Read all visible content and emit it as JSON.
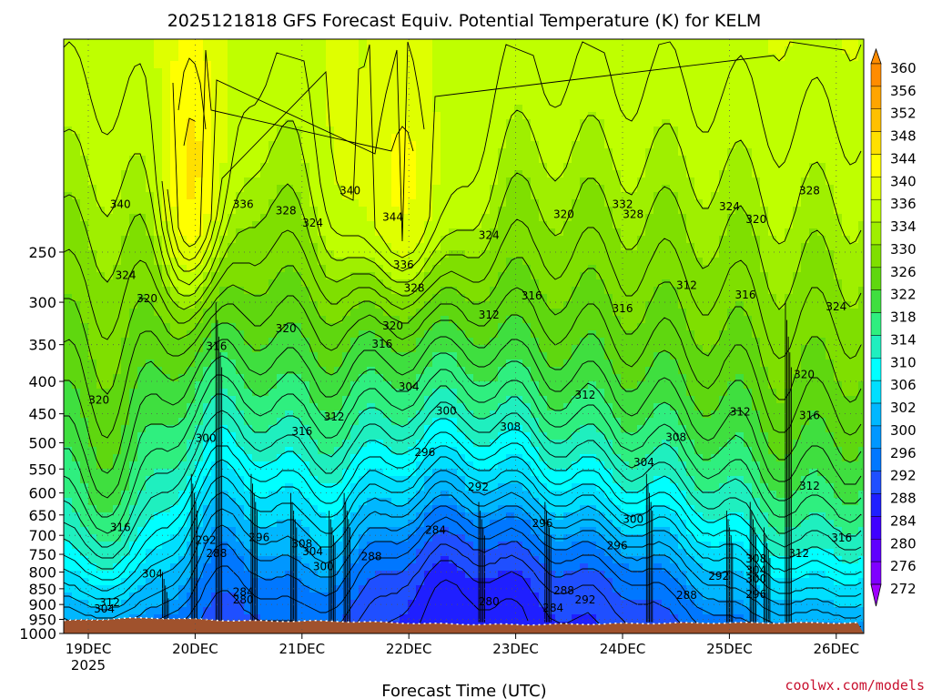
{
  "chart_data": {
    "type": "heatmap",
    "title": "2025121818 GFS Forecast Equiv. Potential Temperature (K) for KELM",
    "xlabel": "Forecast Time (UTC)",
    "ylabel": "",
    "watermark": "coolwx.com/models",
    "y_axis": {
      "type": "pressure",
      "ticks": [
        "250",
        "300",
        "350",
        "400",
        "450",
        "500",
        "550",
        "600",
        "650",
        "700",
        "750",
        "800",
        "850",
        "900",
        "950",
        "1000"
      ]
    },
    "x_axis": {
      "ticks": [
        {
          "label": "19DEC",
          "sub": "2025",
          "day": 0
        },
        {
          "label": "20DEC",
          "sub": "",
          "day": 1
        },
        {
          "label": "21DEC",
          "sub": "",
          "day": 2
        },
        {
          "label": "22DEC",
          "sub": "",
          "day": 3
        },
        {
          "label": "23DEC",
          "sub": "",
          "day": 4
        },
        {
          "label": "24DEC",
          "sub": "",
          "day": 5
        },
        {
          "label": "25DEC",
          "sub": "",
          "day": 6
        },
        {
          "label": "26DEC",
          "sub": "",
          "day": 7
        }
      ]
    },
    "colorbar": {
      "levels": [
        "360",
        "356",
        "352",
        "348",
        "344",
        "340",
        "336",
        "334",
        "330",
        "326",
        "322",
        "318",
        "314",
        "310",
        "306",
        "302",
        "300",
        "296",
        "292",
        "288",
        "284",
        "280",
        "276",
        "272"
      ],
      "colors": [
        "#ff8c00",
        "#ffa500",
        "#ffc000",
        "#ffe000",
        "#ffff00",
        "#dfff00",
        "#bfff00",
        "#9fef00",
        "#7fdf00",
        "#5fd70f",
        "#3fdf3f",
        "#2fef7f",
        "#1fefbf",
        "#00ffff",
        "#00dfff",
        "#00b7ff",
        "#0097ff",
        "#0077ff",
        "#1f4fff",
        "#1f1fff",
        "#3f00ff",
        "#5f00ff",
        "#7f00ff",
        "#9f00ff"
      ]
    },
    "contour_labels": [
      {
        "text": "340",
        "day": 0.3,
        "p": 210
      },
      {
        "text": "336",
        "day": 1.45,
        "p": 210
      },
      {
        "text": "328",
        "day": 1.85,
        "p": 215
      },
      {
        "text": "324",
        "day": 2.1,
        "p": 225
      },
      {
        "text": "344",
        "day": 2.85,
        "p": 220
      },
      {
        "text": "340",
        "day": 2.45,
        "p": 200
      },
      {
        "text": "332",
        "day": 5.0,
        "p": 210
      },
      {
        "text": "328",
        "day": 5.1,
        "p": 218
      },
      {
        "text": "320",
        "day": 4.45,
        "p": 218
      },
      {
        "text": "324",
        "day": 3.75,
        "p": 235
      },
      {
        "text": "324",
        "day": 6.0,
        "p": 212
      },
      {
        "text": "328",
        "day": 6.75,
        "p": 200
      },
      {
        "text": "320",
        "day": 6.25,
        "p": 222
      },
      {
        "text": "324",
        "day": 0.35,
        "p": 272
      },
      {
        "text": "320",
        "day": 0.55,
        "p": 296
      },
      {
        "text": "336",
        "day": 2.95,
        "p": 262
      },
      {
        "text": "328",
        "day": 3.05,
        "p": 285
      },
      {
        "text": "316",
        "day": 4.15,
        "p": 293
      },
      {
        "text": "312",
        "day": 5.6,
        "p": 282
      },
      {
        "text": "316",
        "day": 6.15,
        "p": 292
      },
      {
        "text": "312",
        "day": 3.75,
        "p": 314
      },
      {
        "text": "316",
        "day": 5.0,
        "p": 307
      },
      {
        "text": "324",
        "day": 7.0,
        "p": 305
      },
      {
        "text": "320",
        "day": 1.85,
        "p": 330
      },
      {
        "text": "320",
        "day": 2.85,
        "p": 327
      },
      {
        "text": "316",
        "day": 2.75,
        "p": 349
      },
      {
        "text": "316",
        "day": 1.2,
        "p": 352
      },
      {
        "text": "320",
        "day": 6.7,
        "p": 390
      },
      {
        "text": "320",
        "day": 0.1,
        "p": 428
      },
      {
        "text": "304",
        "day": 3.0,
        "p": 408
      },
      {
        "text": "312",
        "day": 4.65,
        "p": 420
      },
      {
        "text": "312",
        "day": 2.3,
        "p": 455
      },
      {
        "text": "300",
        "day": 3.35,
        "p": 445
      },
      {
        "text": "312",
        "day": 6.1,
        "p": 447
      },
      {
        "text": "316",
        "day": 6.75,
        "p": 453
      },
      {
        "text": "316",
        "day": 2.0,
        "p": 480
      },
      {
        "text": "308",
        "day": 3.95,
        "p": 472
      },
      {
        "text": "308",
        "day": 5.5,
        "p": 490
      },
      {
        "text": "300",
        "day": 1.1,
        "p": 492
      },
      {
        "text": "296",
        "day": 3.15,
        "p": 518
      },
      {
        "text": "304",
        "day": 5.2,
        "p": 537
      },
      {
        "text": "292",
        "day": 3.65,
        "p": 587
      },
      {
        "text": "312",
        "day": 6.75,
        "p": 585
      },
      {
        "text": "300",
        "day": 5.1,
        "p": 660
      },
      {
        "text": "296",
        "day": 4.25,
        "p": 670
      },
      {
        "text": "316",
        "day": 0.3,
        "p": 680
      },
      {
        "text": "284",
        "day": 3.25,
        "p": 687
      },
      {
        "text": "292",
        "day": 1.1,
        "p": 712
      },
      {
        "text": "296",
        "day": 1.6,
        "p": 705
      },
      {
        "text": "316",
        "day": 7.05,
        "p": 707
      },
      {
        "text": "296",
        "day": 4.95,
        "p": 727
      },
      {
        "text": "308",
        "day": 2.0,
        "p": 722
      },
      {
        "text": "304",
        "day": 2.1,
        "p": 742
      },
      {
        "text": "288",
        "day": 1.2,
        "p": 747
      },
      {
        "text": "288",
        "day": 2.65,
        "p": 756
      },
      {
        "text": "312",
        "day": 6.65,
        "p": 747
      },
      {
        "text": "308",
        "day": 6.25,
        "p": 762
      },
      {
        "text": "300",
        "day": 2.2,
        "p": 784
      },
      {
        "text": "304",
        "day": 0.6,
        "p": 805
      },
      {
        "text": "304",
        "day": 6.25,
        "p": 795
      },
      {
        "text": "292",
        "day": 5.9,
        "p": 812
      },
      {
        "text": "300",
        "day": 6.25,
        "p": 820
      },
      {
        "text": "284",
        "day": 1.45,
        "p": 860
      },
      {
        "text": "288",
        "day": 4.45,
        "p": 856
      },
      {
        "text": "288",
        "day": 5.6,
        "p": 870
      },
      {
        "text": "296",
        "day": 6.25,
        "p": 868
      },
      {
        "text": "280",
        "day": 1.45,
        "p": 885
      },
      {
        "text": "292",
        "day": 4.65,
        "p": 885
      },
      {
        "text": "280",
        "day": 3.75,
        "p": 890
      },
      {
        "text": "312",
        "day": 0.2,
        "p": 893
      },
      {
        "text": "284",
        "day": 4.35,
        "p": 912
      },
      {
        "text": "304",
        "day": 0.15,
        "p": 915
      }
    ]
  }
}
